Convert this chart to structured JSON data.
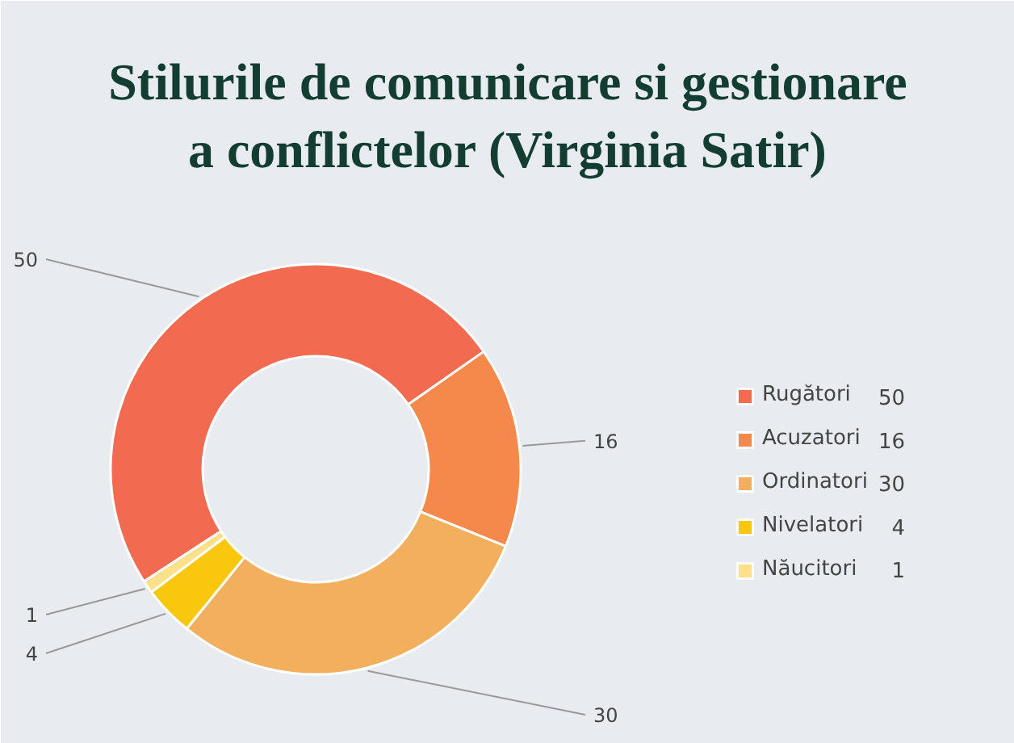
{
  "chart_data": {
    "type": "donut",
    "title": "Stilurile de comunicare si gestionare a conflictelor (Virginia Satir)",
    "categories": [
      "Rugători",
      "Acuzatori",
      "Ordinatori",
      "Nivelatori",
      "Năucitori"
    ],
    "values": [
      50,
      16,
      30,
      4,
      1
    ],
    "colors": [
      "#f26b50",
      "#f4894b",
      "#f2b05e",
      "#f9c80e",
      "#fde08a"
    ],
    "value_labels": [
      "50",
      "16",
      "30",
      "4",
      "1"
    ],
    "data_labels": true,
    "legend": "right"
  }
}
